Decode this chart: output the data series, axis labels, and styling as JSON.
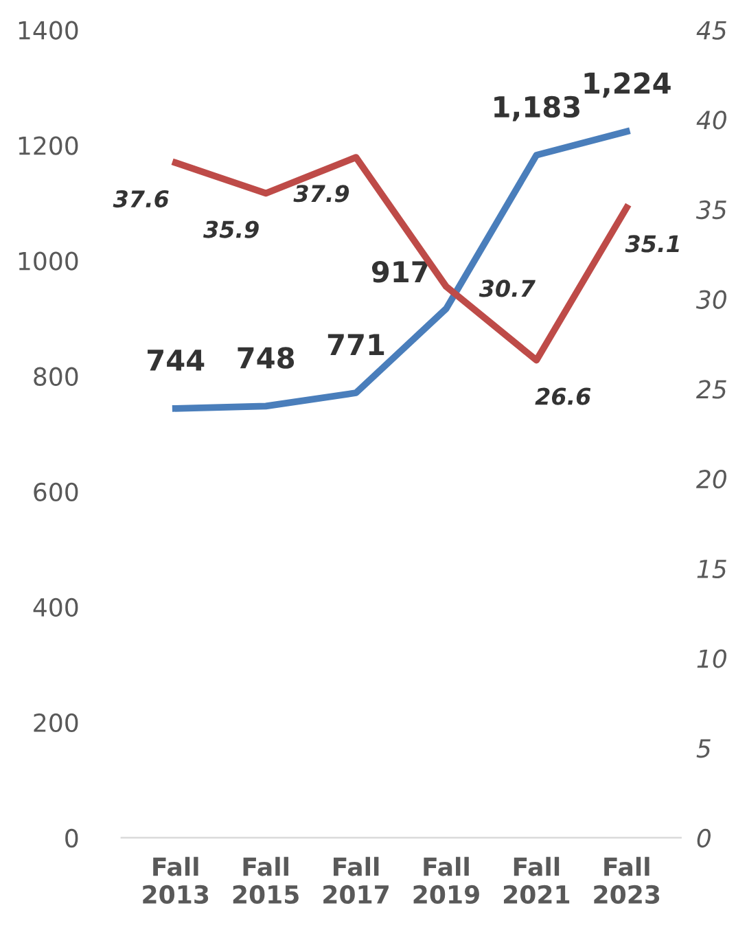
{
  "chart_data": {
    "type": "line",
    "categories": [
      "Fall\n2013",
      "Fall\n2015",
      "Fall\n2017",
      "Fall\n2019",
      "Fall\n2021",
      "Fall\n2023"
    ],
    "series": [
      {
        "color": "#4a7ebb",
        "values": [
          744,
          748,
          771,
          917,
          1183,
          1224
        ],
        "value_labels": [
          "744",
          "748",
          "771",
          "917",
          "1,183",
          "1,224"
        ]
      },
      {
        "color": "#be4b48",
        "axis": "y2",
        "values": [
          37.6,
          35.9,
          37.9,
          30.7,
          26.6,
          35.1
        ],
        "value_labels": [
          "37.6",
          "35.9",
          "37.9",
          "30.7",
          "26.6",
          "35.1"
        ]
      }
    ],
    "ylim": [
      0,
      1400
    ],
    "yticks": [
      0,
      200,
      400,
      600,
      800,
      1000,
      1200,
      1400
    ],
    "y2lim": [
      0,
      45
    ],
    "y2ticks": [
      0,
      5,
      10,
      15,
      20,
      25,
      30,
      35,
      40,
      45
    ],
    "grid": false,
    "legend": false,
    "marker": "none",
    "line_style": "solid"
  }
}
